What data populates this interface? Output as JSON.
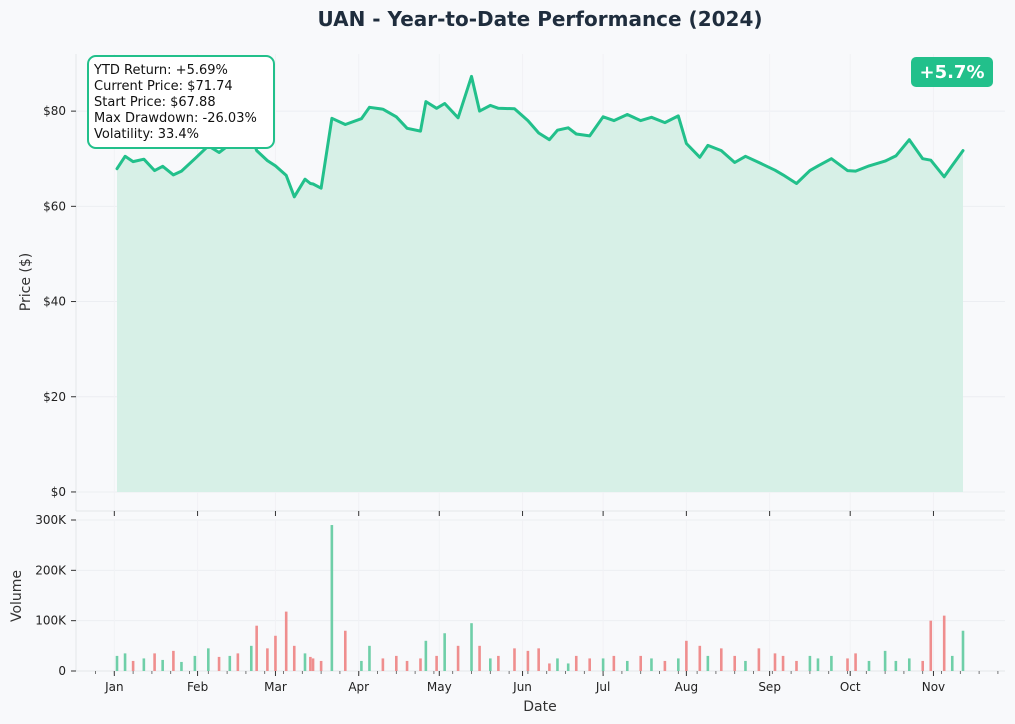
{
  "chart_data": [
    {
      "type": "area",
      "title": "UAN - Year-to-Date Performance (2024)",
      "ylabel": "Price ($)",
      "xlabel": "",
      "ylim": [
        -4,
        92
      ],
      "y_ticks": [
        0,
        20,
        40,
        60,
        80
      ],
      "y_tick_labels": [
        "$0",
        "$20",
        "$40",
        "$60",
        "$80"
      ],
      "grid": true,
      "line_color": "#22c08b",
      "fill_color": "#d5efe6",
      "annotation_box": [
        "YTD Return: +5.69%",
        "Current Price: $71.74",
        "Start Price: $67.88",
        "Max Drawdown: -26.03%",
        "Volatility: 33.4%"
      ],
      "return_badge": {
        "text": "+5.7%",
        "color": "#22c08b",
        "placement": "top-right"
      },
      "series": [
        {
          "x": [
            "2024-01-02",
            "2024-01-05",
            "2024-01-08",
            "2024-01-12",
            "2024-01-16",
            "2024-01-19",
            "2024-01-23",
            "2024-01-26",
            "2024-01-31",
            "2024-02-05",
            "2024-02-09",
            "2024-02-13",
            "2024-02-16",
            "2024-02-21",
            "2024-02-23",
            "2024-02-27",
            "2024-03-01",
            "2024-03-05",
            "2024-03-08",
            "2024-03-12",
            "2024-03-14",
            "2024-03-15",
            "2024-03-18",
            "2024-03-22",
            "2024-03-27",
            "2024-04-02",
            "2024-04-05",
            "2024-04-10",
            "2024-04-15",
            "2024-04-19",
            "2024-04-24",
            "2024-04-26",
            "2024-04-30",
            "2024-05-03",
            "2024-05-08",
            "2024-05-13",
            "2024-05-16",
            "2024-05-20",
            "2024-05-23",
            "2024-05-29",
            "2024-06-03",
            "2024-06-07",
            "2024-06-11",
            "2024-06-14",
            "2024-06-18",
            "2024-06-21",
            "2024-06-26",
            "2024-07-01",
            "2024-07-05",
            "2024-07-10",
            "2024-07-15",
            "2024-07-19",
            "2024-07-24",
            "2024-07-29",
            "2024-08-01",
            "2024-08-06",
            "2024-08-09",
            "2024-08-14",
            "2024-08-19",
            "2024-08-23",
            "2024-08-28",
            "2024-09-03",
            "2024-09-06",
            "2024-09-11",
            "2024-09-16",
            "2024-09-19",
            "2024-09-24",
            "2024-09-30",
            "2024-10-03",
            "2024-10-08",
            "2024-10-14",
            "2024-10-18",
            "2024-10-23",
            "2024-10-28",
            "2024-10-31",
            "2024-11-05",
            "2024-11-08",
            "2024-11-12"
          ],
          "values": [
            67.9,
            70.5,
            69.4,
            69.9,
            67.5,
            68.4,
            66.6,
            67.4,
            70.0,
            72.7,
            71.3,
            73.0,
            72.6,
            74.6,
            71.7,
            69.6,
            68.5,
            66.5,
            62.0,
            65.7,
            64.8,
            64.7,
            63.8,
            78.5,
            77.2,
            78.4,
            80.8,
            80.4,
            78.8,
            76.4,
            75.8,
            82.0,
            80.6,
            81.6,
            78.6,
            87.3,
            80.0,
            81.2,
            80.6,
            80.5,
            78.0,
            75.4,
            74.0,
            76.0,
            76.5,
            75.2,
            74.8,
            78.8,
            78.0,
            79.3,
            78.0,
            78.7,
            77.6,
            79.0,
            73.2,
            70.3,
            72.8,
            71.7,
            69.2,
            70.5,
            69.2,
            67.6,
            66.6,
            64.8,
            67.5,
            68.5,
            70.0,
            67.5,
            67.4,
            68.5,
            69.5,
            70.6,
            74.0,
            70.0,
            69.7,
            66.2,
            68.6,
            71.7
          ]
        }
      ]
    },
    {
      "type": "bar",
      "ylabel": "Volume",
      "xlabel": "Date",
      "ylim": [
        0,
        300000
      ],
      "y_ticks": [
        0,
        100000,
        200000,
        300000
      ],
      "y_tick_labels": [
        "0",
        "100K",
        "200K",
        "300K"
      ],
      "x_tick_labels": [
        "Jan",
        "Feb",
        "Mar",
        "Apr",
        "May",
        "Jun",
        "Jul",
        "Aug",
        "Sep",
        "Oct",
        "Nov"
      ],
      "up_color": "#6fcfa8",
      "down_color": "#ef8e8e",
      "series": [
        {
          "name": "",
          "x": [
            "2024-01-02",
            "2024-01-05",
            "2024-01-08",
            "2024-01-12",
            "2024-01-16",
            "2024-01-19",
            "2024-01-23",
            "2024-01-26",
            "2024-01-31",
            "2024-02-05",
            "2024-02-09",
            "2024-02-13",
            "2024-02-16",
            "2024-02-21",
            "2024-02-23",
            "2024-02-27",
            "2024-03-01",
            "2024-03-05",
            "2024-03-08",
            "2024-03-12",
            "2024-03-14",
            "2024-03-15",
            "2024-03-18",
            "2024-03-22",
            "2024-03-27",
            "2024-04-02",
            "2024-04-05",
            "2024-04-10",
            "2024-04-15",
            "2024-04-19",
            "2024-04-24",
            "2024-04-26",
            "2024-04-30",
            "2024-05-03",
            "2024-05-08",
            "2024-05-13",
            "2024-05-16",
            "2024-05-20",
            "2024-05-23",
            "2024-05-29",
            "2024-06-03",
            "2024-06-07",
            "2024-06-11",
            "2024-06-14",
            "2024-06-18",
            "2024-06-21",
            "2024-06-26",
            "2024-07-01",
            "2024-07-05",
            "2024-07-10",
            "2024-07-15",
            "2024-07-19",
            "2024-07-24",
            "2024-07-29",
            "2024-08-01",
            "2024-08-06",
            "2024-08-09",
            "2024-08-14",
            "2024-08-19",
            "2024-08-23",
            "2024-08-28",
            "2024-09-03",
            "2024-09-06",
            "2024-09-11",
            "2024-09-16",
            "2024-09-19",
            "2024-09-24",
            "2024-09-30",
            "2024-10-03",
            "2024-10-08",
            "2024-10-14",
            "2024-10-18",
            "2024-10-23",
            "2024-10-28",
            "2024-10-31",
            "2024-11-05",
            "2024-11-08",
            "2024-11-12"
          ],
          "values": [
            30000,
            35000,
            20000,
            25000,
            35000,
            22000,
            40000,
            18000,
            30000,
            45000,
            28000,
            30000,
            35000,
            50000,
            90000,
            45000,
            70000,
            118000,
            50000,
            35000,
            28000,
            25000,
            20000,
            290000,
            80000,
            20000,
            50000,
            25000,
            30000,
            20000,
            25000,
            60000,
            30000,
            75000,
            50000,
            95000,
            50000,
            25000,
            30000,
            45000,
            40000,
            45000,
            15000,
            25000,
            15000,
            30000,
            25000,
            25000,
            30000,
            20000,
            30000,
            25000,
            20000,
            25000,
            60000,
            50000,
            30000,
            45000,
            30000,
            20000,
            45000,
            35000,
            30000,
            20000,
            30000,
            25000,
            30000,
            25000,
            35000,
            20000,
            40000,
            20000,
            25000,
            20000,
            100000,
            110000,
            30000,
            80000
          ],
          "up": [
            true,
            true,
            false,
            true,
            false,
            true,
            false,
            true,
            true,
            true,
            false,
            true,
            false,
            true,
            false,
            false,
            false,
            false,
            false,
            true,
            false,
            false,
            false,
            true,
            false,
            true,
            true,
            false,
            false,
            false,
            false,
            true,
            false,
            true,
            false,
            true,
            false,
            true,
            false,
            false,
            false,
            false,
            false,
            true,
            true,
            false,
            false,
            true,
            false,
            true,
            false,
            true,
            false,
            true,
            false,
            false,
            true,
            false,
            false,
            true,
            false,
            false,
            false,
            false,
            true,
            true,
            true,
            false,
            false,
            true,
            true,
            true,
            true,
            false,
            false,
            false,
            true,
            true
          ]
        }
      ]
    }
  ]
}
